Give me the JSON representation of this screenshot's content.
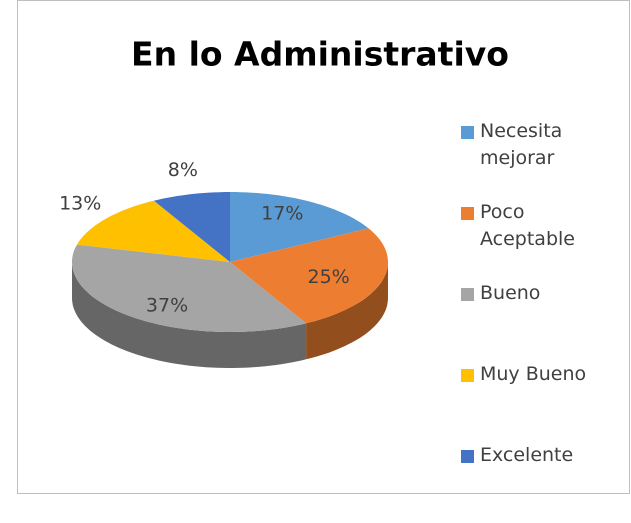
{
  "chart_data": {
    "type": "pie3d",
    "title": "En lo Administrativo",
    "categories": [
      "Necesita mejorar",
      "Poco Aceptable",
      "Bueno",
      "Muy Bueno",
      "Excelente"
    ],
    "values": [
      17,
      25,
      37,
      13,
      8
    ],
    "value_labels": [
      "17%",
      "25%",
      "37%",
      "13%",
      "8%"
    ],
    "colors": [
      "#5b9bd5",
      "#ed7d31",
      "#a5a5a5",
      "#ffc000",
      "#4472c4"
    ],
    "legend": "right"
  }
}
